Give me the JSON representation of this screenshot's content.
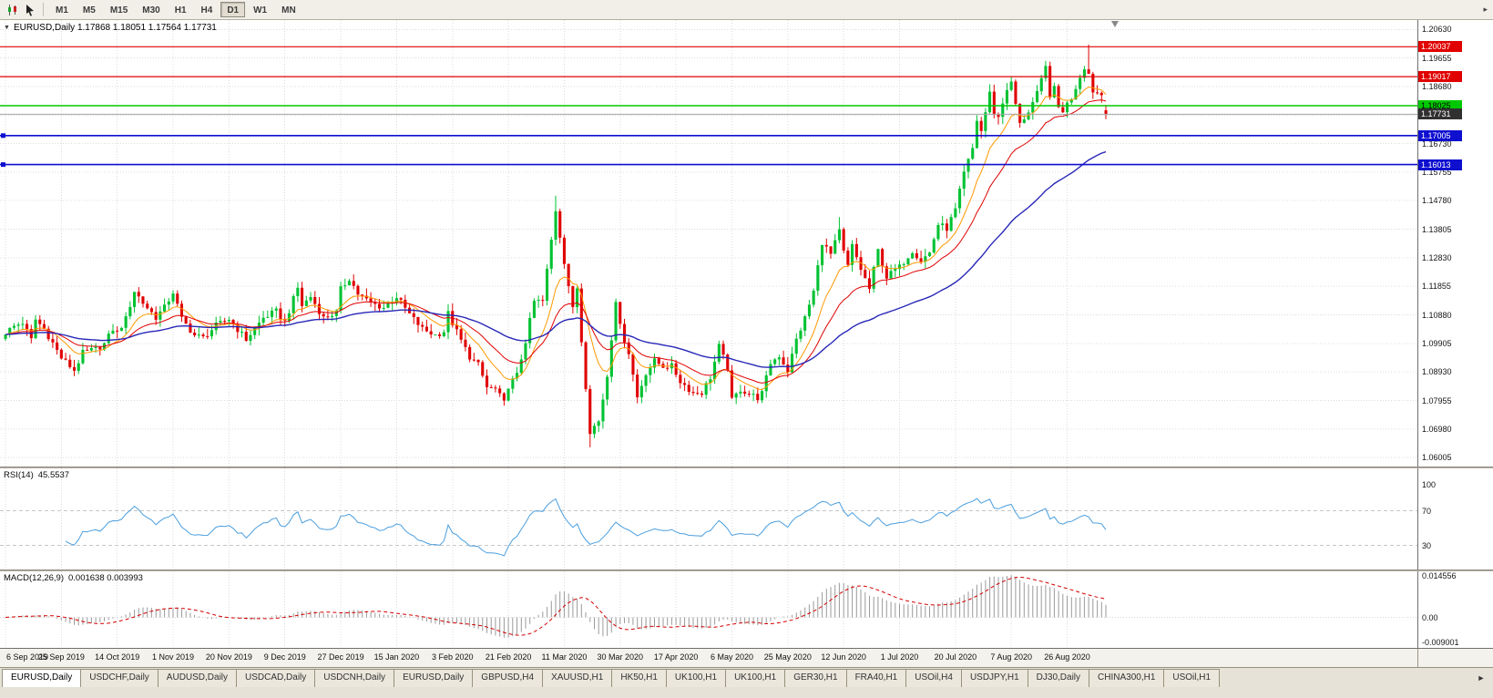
{
  "window": {
    "toolbar": {
      "timeframes": [
        "M1",
        "M5",
        "M15",
        "M30",
        "H1",
        "H4",
        "D1",
        "W1",
        "MN"
      ],
      "active_timeframe": "D1",
      "overflow_icon": "▸"
    },
    "tabs": {
      "items": [
        "EURUSD,Daily",
        "USDCHF,Daily",
        "AUDUSD,Daily",
        "USDCAD,Daily",
        "USDCNH,Daily",
        "EURUSD,Daily",
        "GBPUSD,H4",
        "XAUUSD,H1",
        "HK50,H1",
        "UK100,H1",
        "UK100,H1",
        "GER30,H1",
        "FRA40,H1",
        "USOil,H4",
        "USDJPY,H1",
        "DJ30,Daily",
        "CHINA300,H1",
        "USOil,H1"
      ],
      "active_index": 0,
      "scroll_right_icon": "►"
    }
  },
  "chart_data": {
    "type": "candlestick",
    "symbol": "EURUSD",
    "timeframe": "Daily",
    "symbol_header": "EURUSD,Daily  1.17868 1.18051 1.17564 1.17731",
    "ohlc_current": {
      "open": 1.17868,
      "high": 1.18051,
      "low": 1.17564,
      "close": 1.17731
    },
    "num_candles": 257,
    "x_tick_interval": 13,
    "x_ticks": [
      "6 Sep 2019",
      "25 Sep 2019",
      "14 Oct 2019",
      "1 Nov 2019",
      "20 Nov 2019",
      "9 Dec 2019",
      "27 Dec 2019",
      "15 Jan 2020",
      "3 Feb 2020",
      "21 Feb 2020",
      "11 Mar 2020",
      "30 Mar 2020",
      "17 Apr 2020",
      "6 May 2020",
      "25 May 2020",
      "12 Jun 2020",
      "1 Jul 2020",
      "20 Jul 2020",
      "7 Aug 2020",
      "26 Aug 2020"
    ],
    "price_axis": {
      "min": 1.057,
      "max": 1.2095,
      "step": 0.00975,
      "labels": [
        "1.20630",
        "1.19655",
        "1.18680",
        "1.17705",
        "1.16730",
        "1.15755",
        "1.14780",
        "1.13805",
        "1.12830",
        "1.11855",
        "1.10880",
        "1.09905",
        "1.08930",
        "1.07955",
        "1.06980",
        "1.06005"
      ]
    },
    "grid_color": "#dcdcdc",
    "candle_colors": {
      "up": "#00c232",
      "down": "#e00000"
    },
    "close_waypoints": [
      [
        0,
        1.1028
      ],
      [
        2,
        1.1049
      ],
      [
        4,
        1.1062
      ],
      [
        6,
        1.1003
      ],
      [
        7,
        1.1072
      ],
      [
        9,
        1.104
      ],
      [
        11,
        1.0992
      ],
      [
        13,
        1.0941
      ],
      [
        16,
        1.0899
      ],
      [
        18,
        1.0958
      ],
      [
        21,
        1.0971
      ],
      [
        23,
        1.0989
      ],
      [
        25,
        1.104
      ],
      [
        26,
        1.1028
      ],
      [
        28,
        1.1074
      ],
      [
        30,
        1.117
      ],
      [
        32,
        1.1129
      ],
      [
        35,
        1.108
      ],
      [
        37,
        1.1113
      ],
      [
        39,
        1.1166
      ],
      [
        41,
        1.1074
      ],
      [
        44,
        1.1018
      ],
      [
        46,
        1.101
      ],
      [
        49,
        1.1051
      ],
      [
        52,
        1.1074
      ],
      [
        56,
        1.1004
      ],
      [
        60,
        1.1078
      ],
      [
        63,
        1.11
      ],
      [
        65,
        1.1064
      ],
      [
        68,
        1.118
      ],
      [
        69,
        1.112
      ],
      [
        71,
        1.115
      ],
      [
        74,
        1.1078
      ],
      [
        77,
        1.1096
      ],
      [
        78,
        1.1175
      ],
      [
        80,
        1.1213
      ],
      [
        82,
        1.116
      ],
      [
        85,
        1.1128
      ],
      [
        88,
        1.1113
      ],
      [
        91,
        1.115
      ],
      [
        94,
        1.109
      ],
      [
        97,
        1.104
      ],
      [
        100,
        1.1019
      ],
      [
        102,
        1.1032
      ],
      [
        103,
        1.1093
      ],
      [
        104,
        1.106
      ],
      [
        106,
        1.1
      ],
      [
        108,
        1.0945
      ],
      [
        110,
        1.0917
      ],
      [
        112,
        1.084
      ],
      [
        114,
        1.0834
      ],
      [
        116,
        1.0786
      ],
      [
        117,
        1.0846
      ],
      [
        119,
        1.0881
      ],
      [
        121,
        1.0999
      ],
      [
        123,
        1.1134
      ],
      [
        125,
        1.1134
      ],
      [
        126,
        1.124
      ],
      [
        128,
        1.1446
      ],
      [
        130,
        1.1271
      ],
      [
        132,
        1.1106
      ],
      [
        133,
        1.118
      ],
      [
        134,
        1.0999
      ],
      [
        136,
        1.0692
      ],
      [
        138,
        1.0724
      ],
      [
        140,
        1.088
      ],
      [
        142,
        1.1141
      ],
      [
        143,
        1.1047
      ],
      [
        145,
        1.096
      ],
      [
        147,
        1.0807
      ],
      [
        149,
        1.0891
      ],
      [
        151,
        1.093
      ],
      [
        153,
        1.0913
      ],
      [
        155,
        1.0912
      ],
      [
        157,
        1.0862
      ],
      [
        160,
        1.0821
      ],
      [
        162,
        1.0823
      ],
      [
        164,
        1.0875
      ],
      [
        166,
        1.098
      ],
      [
        168,
        1.0906
      ],
      [
        169,
        1.0795
      ],
      [
        171,
        1.0834
      ],
      [
        173,
        1.0818
      ],
      [
        175,
        1.0805
      ],
      [
        176,
        1.082
      ],
      [
        178,
        1.0924
      ],
      [
        180,
        1.0949
      ],
      [
        182,
        1.0897
      ],
      [
        184,
        1.1003
      ],
      [
        186,
        1.1077
      ],
      [
        188,
        1.1168
      ],
      [
        190,
        1.1337
      ],
      [
        192,
        1.1294
      ],
      [
        194,
        1.1373
      ],
      [
        195,
        1.1301
      ],
      [
        196,
        1.1254
      ],
      [
        197,
        1.1323
      ],
      [
        199,
        1.1244
      ],
      [
        201,
        1.1177
      ],
      [
        203,
        1.1308
      ],
      [
        205,
        1.1217
      ],
      [
        207,
        1.1242
      ],
      [
        208,
        1.1251
      ],
      [
        211,
        1.1308
      ],
      [
        213,
        1.1275
      ],
      [
        215,
        1.13
      ],
      [
        217,
        1.1397
      ],
      [
        219,
        1.1384
      ],
      [
        221,
        1.1446
      ],
      [
        223,
        1.1571
      ],
      [
        225,
        1.1656
      ],
      [
        226,
        1.1753
      ],
      [
        227,
        1.1716
      ],
      [
        229,
        1.1845
      ],
      [
        230,
        1.1778
      ],
      [
        231,
        1.1762
      ],
      [
        233,
        1.1862
      ],
      [
        234,
        1.1878
      ],
      [
        236,
        1.1738
      ],
      [
        238,
        1.1784
      ],
      [
        240,
        1.1842
      ],
      [
        242,
        1.1933
      ],
      [
        243,
        1.184
      ],
      [
        244,
        1.1859
      ],
      [
        245,
        1.1796
      ],
      [
        246,
        1.1787
      ],
      [
        248,
        1.183
      ],
      [
        250,
        1.1903
      ],
      [
        251,
        1.1936
      ],
      [
        252,
        1.1911
      ],
      [
        253,
        1.1854
      ],
      [
        255,
        1.184
      ],
      [
        256,
        1.17731
      ]
    ],
    "wick_overrides": [
      {
        "i": 16,
        "low": 1.0879
      },
      {
        "i": 116,
        "low": 1.0778
      },
      {
        "i": 128,
        "high": 1.1495
      },
      {
        "i": 136,
        "low": 1.0636
      },
      {
        "i": 194,
        "high": 1.1422
      },
      {
        "i": 252,
        "high": 1.2011
      }
    ],
    "hlines": [
      {
        "price": 1.20037,
        "label": "1.20037",
        "color": "#e00000",
        "tag_text": "#ffffff",
        "width": 1.2,
        "handle": false
      },
      {
        "price": 1.19017,
        "label": "1.19017",
        "color": "#e00000",
        "tag_text": "#ffffff",
        "width": 1.2,
        "handle": false
      },
      {
        "price": 1.18025,
        "label": "1.18025",
        "color": "#00c800",
        "tag_text": "#000000",
        "width": 1.6,
        "handle": false
      },
      {
        "price": 1.17005,
        "label": "1.17005",
        "color": "#0f0fd0",
        "tag_text": "#ffffff",
        "width": 1.6,
        "handle": true
      },
      {
        "price": 1.16013,
        "label": "1.16013",
        "color": "#0f0fd0",
        "tag_text": "#ffffff",
        "width": 1.6,
        "handle": true
      }
    ],
    "bid_line": {
      "price": 1.17731,
      "label": "1.17731",
      "line_color": "#a6a6a6",
      "tag_bg": "#303030",
      "tag_text": "#ffffff"
    },
    "moving_averages": [
      {
        "name": "ma-fast-line",
        "period": 10,
        "color": "#ff9900",
        "width": 1
      },
      {
        "name": "ma-mid-line",
        "period": 21,
        "color": "#e00000",
        "width": 1
      },
      {
        "name": "ma-slow-line",
        "period": 55,
        "color": "#2828b8",
        "width": 1.4
      }
    ],
    "rsi": {
      "label": "RSI(14)",
      "value_label": "45.5537",
      "period": 14,
      "color": "#4a9ede",
      "level_line_color": "#c6c6c6",
      "levels": [
        70,
        30
      ],
      "axis_labels": [
        "100",
        "70",
        "30"
      ],
      "axis_values": [
        100,
        70,
        30
      ]
    },
    "macd": {
      "label": "MACD(12,26,9)",
      "values_label": "0.001638 0.003993",
      "macd_value": 0.001638,
      "signal_value": 0.003993,
      "fast": 12,
      "slow": 26,
      "signal": 9,
      "histogram_color": "#9a9a9a",
      "signal_color": "#d40000",
      "zero_line_color": "#d8d8d8",
      "axis_labels": [
        "0.014556",
        "0.00",
        "-0.009001"
      ],
      "axis_values": [
        0.014556,
        0,
        -0.009001
      ],
      "scale_max": 0.015,
      "scale_min": -0.0095
    }
  }
}
